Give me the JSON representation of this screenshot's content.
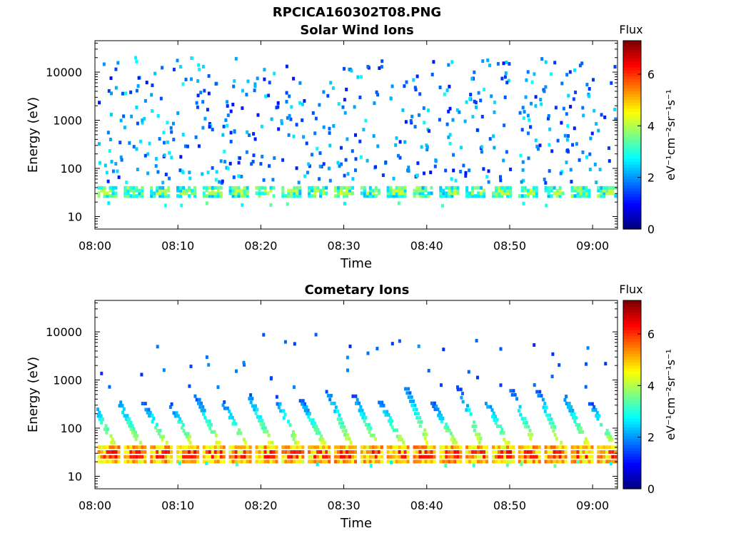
{
  "file_title": "RPCICA160302T08.PNG",
  "chart_data": [
    {
      "type": "heatmap",
      "title": "Solar Wind Ions",
      "xlabel": "Time",
      "ylabel": "Energy (eV)",
      "x_tick_labels": [
        "08:00",
        "08:10",
        "08:20",
        "08:30",
        "08:40",
        "08:50",
        "09:00"
      ],
      "x_tick_minutes": [
        0,
        10,
        20,
        30,
        40,
        50,
        60
      ],
      "xlim_minutes": [
        0,
        63
      ],
      "y_tick_labels": [
        "10",
        "100",
        "1000",
        "10000"
      ],
      "y_tick_values": [
        10,
        100,
        1000,
        10000
      ],
      "ylim": [
        5.5,
        45000
      ],
      "y_scale": "log",
      "colorbar": {
        "title": "Flux",
        "label": "eV⁻¹cm⁻²sr⁻¹s⁻¹",
        "ticks": [
          "0",
          "2",
          "4",
          "6"
        ],
        "tick_values": [
          0,
          2,
          4,
          6
        ],
        "range": [
          0,
          7.3
        ],
        "colormap": "jet"
      },
      "bursts": {
        "period_minutes": 3.17,
        "count": 20,
        "start_minute": 0.3,
        "band_energy": [
          25,
          42
        ],
        "band_flux": [
          2.2,
          4.0
        ],
        "peak_flux": 4.3
      },
      "background_flux": [
        1.0,
        2.8
      ],
      "scatter_energy": [
        50,
        20000
      ]
    },
    {
      "type": "heatmap",
      "title": "Cometary Ions",
      "xlabel": "Time",
      "ylabel": "Energy (eV)",
      "x_tick_labels": [
        "08:00",
        "08:10",
        "08:20",
        "08:30",
        "08:40",
        "08:50",
        "09:00"
      ],
      "x_tick_minutes": [
        0,
        10,
        20,
        30,
        40,
        50,
        60
      ],
      "xlim_minutes": [
        0,
        63
      ],
      "y_tick_labels": [
        "10",
        "100",
        "1000",
        "10000"
      ],
      "y_tick_values": [
        10,
        100,
        1000,
        10000
      ],
      "ylim": [
        5.5,
        45000
      ],
      "y_scale": "log",
      "colorbar": {
        "title": "Flux",
        "label": "eV⁻¹cm⁻²sr⁻¹s⁻¹",
        "ticks": [
          "0",
          "2",
          "4",
          "6"
        ],
        "tick_values": [
          0,
          2,
          4,
          6
        ],
        "range": [
          0,
          7.3
        ],
        "colormap": "jet"
      },
      "bursts": {
        "period_minutes": 3.17,
        "count": 20,
        "start_minute": 0.3,
        "band_energy": [
          18,
          45
        ],
        "band_flux": [
          4.2,
          5.8
        ],
        "peak_flux": 6.5,
        "dispersion_top_energy": [
          300,
          700
        ]
      },
      "background_flux": [
        1.0,
        2.5
      ],
      "scatter_energy": [
        700,
        9000
      ]
    }
  ]
}
